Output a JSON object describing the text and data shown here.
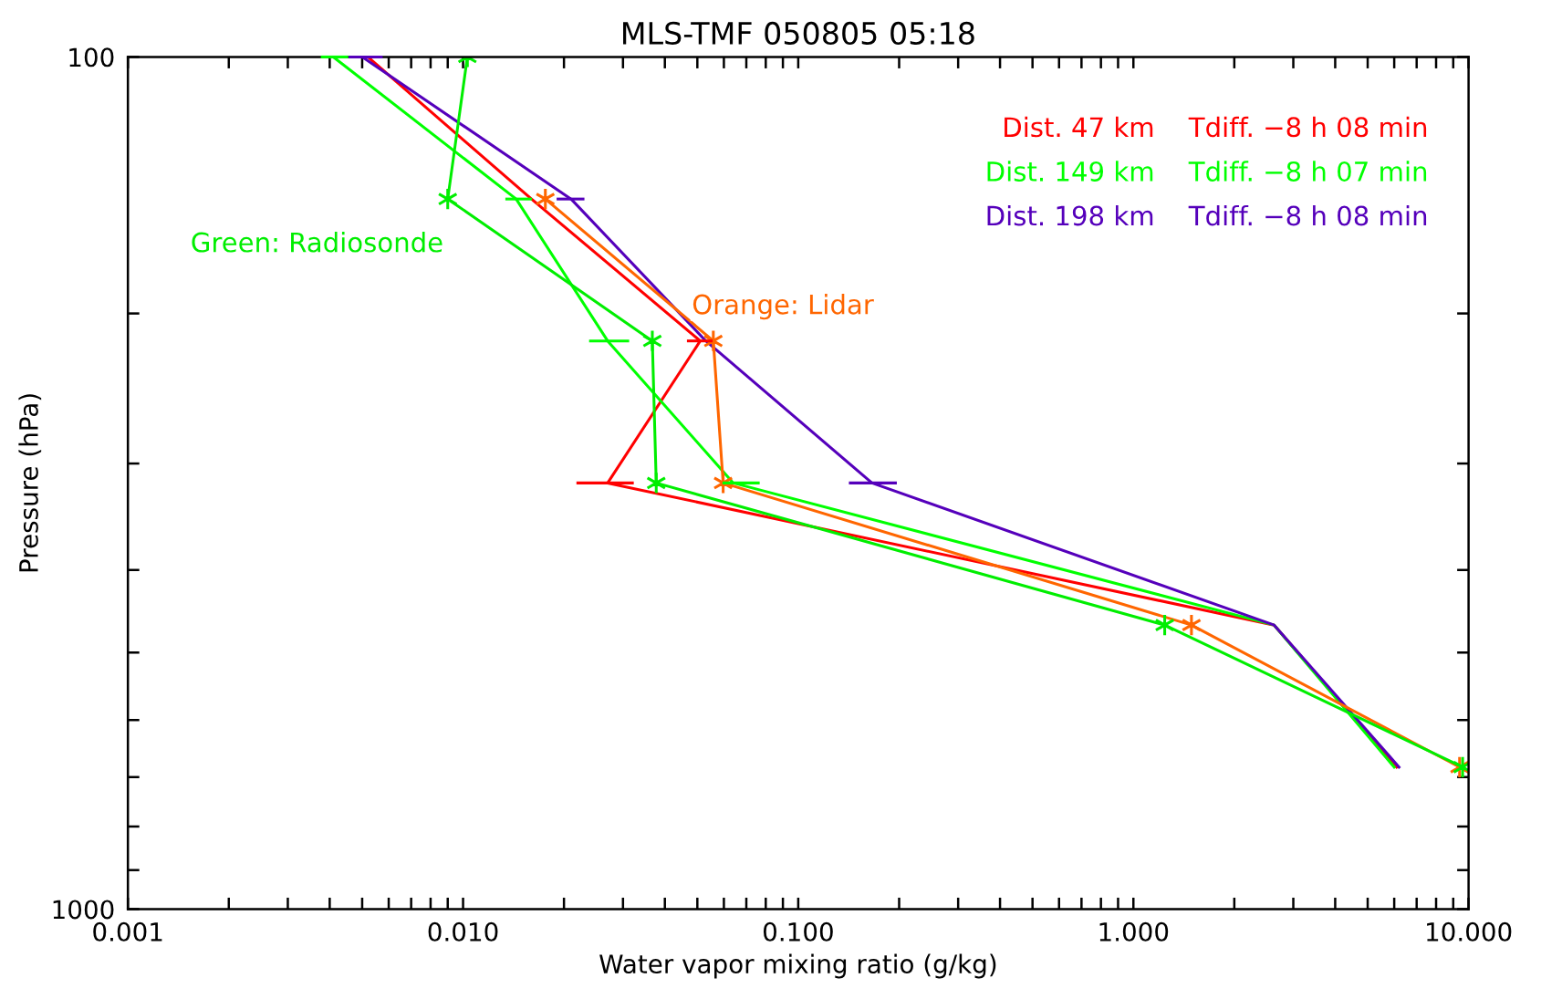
{
  "chart_data": {
    "type": "line",
    "title": "MLS-TMF 050805 05:18",
    "xlabel": "Water vapor mixing ratio (g/kg)",
    "ylabel": "Pressure (hPa)",
    "log": "xy",
    "xlim": [
      0.001,
      10
    ],
    "ylim": [
      1000,
      100
    ],
    "xticks": [
      {
        "value": 0.001,
        "label": "0.001"
      },
      {
        "value": 0.002,
        "label": null
      },
      {
        "value": 0.003,
        "label": null
      },
      {
        "value": 0.004,
        "label": null
      },
      {
        "value": 0.005,
        "label": null
      },
      {
        "value": 0.006,
        "label": null
      },
      {
        "value": 0.007,
        "label": null
      },
      {
        "value": 0.008,
        "label": null
      },
      {
        "value": 0.009,
        "label": null
      },
      {
        "value": 0.01,
        "label": "0.010"
      },
      {
        "value": 0.02,
        "label": null
      },
      {
        "value": 0.03,
        "label": null
      },
      {
        "value": 0.04,
        "label": null
      },
      {
        "value": 0.05,
        "label": null
      },
      {
        "value": 0.06,
        "label": null
      },
      {
        "value": 0.07,
        "label": null
      },
      {
        "value": 0.08,
        "label": null
      },
      {
        "value": 0.09,
        "label": null
      },
      {
        "value": 0.1,
        "label": "0.100"
      },
      {
        "value": 0.2,
        "label": null
      },
      {
        "value": 0.3,
        "label": null
      },
      {
        "value": 0.4,
        "label": null
      },
      {
        "value": 0.5,
        "label": null
      },
      {
        "value": 0.6,
        "label": null
      },
      {
        "value": 0.7,
        "label": null
      },
      {
        "value": 0.8,
        "label": null
      },
      {
        "value": 0.9,
        "label": null
      },
      {
        "value": 1,
        "label": "1.000"
      },
      {
        "value": 2,
        "label": null
      },
      {
        "value": 3,
        "label": null
      },
      {
        "value": 4,
        "label": null
      },
      {
        "value": 5,
        "label": null
      },
      {
        "value": 6,
        "label": null
      },
      {
        "value": 7,
        "label": null
      },
      {
        "value": 8,
        "label": null
      },
      {
        "value": 9,
        "label": null
      },
      {
        "value": 10,
        "label": "10.000"
      }
    ],
    "yticks": [
      100,
      {
        "value": 200,
        "label": null
      },
      {
        "value": 300,
        "label": null
      },
      {
        "value": 400,
        "label": null
      },
      {
        "value": 500,
        "label": null
      },
      {
        "value": 600,
        "label": null
      },
      {
        "value": 700,
        "label": null
      },
      {
        "value": 800,
        "label": null
      },
      {
        "value": 900,
        "label": null
      },
      1000
    ],
    "grid": false,
    "legend": "top right",
    "line_style": "solid",
    "series": [
      {
        "name": "Dist. 47 km    Tdiff. −8 h 08 min",
        "color": "#ff0000",
        "marker": "none",
        "x": [
          0.0052,
          0.016,
          0.051,
          0.027,
          2.63,
          6.1
        ],
        "values": [
          100,
          146.8,
          215.4,
          316.2,
          464.2,
          681.3
        ],
        "xerrors": [
          null,
          null,
          [
            0.047,
            0.055
          ],
          [
            0.022,
            0.032
          ],
          null,
          null
        ]
      },
      {
        "name": "Dist. 149 km    Tdiff. −8 h 07 min",
        "color": "#00ff00",
        "marker": "none",
        "x": [
          0.0041,
          0.0144,
          0.027,
          0.064,
          2.63,
          6.0
        ],
        "values": [
          100,
          146.8,
          215.4,
          316.2,
          464.2,
          681.3
        ],
        "xerrors": [
          [
            0.0038,
            0.0045
          ],
          [
            0.0135,
            0.0159
          ],
          [
            0.024,
            0.031
          ],
          [
            0.06,
            0.076
          ],
          null,
          null
        ]
      },
      {
        "name": "Dist. 198 km    Tdiff. −8 h 08 min",
        "color": "#5500bb",
        "marker": "none",
        "x": [
          0.005,
          0.021,
          0.053,
          0.166,
          2.63,
          6.2
        ],
        "values": [
          100,
          146.8,
          215.4,
          316.2,
          464.2,
          681.3
        ],
        "xerrors": [
          [
            0.0046,
            0.0057
          ],
          [
            0.0192,
            0.0228
          ],
          null,
          [
            0.143,
            0.195
          ],
          null,
          null
        ]
      },
      {
        "name": "Orange: Lidar",
        "color": "#ff6600",
        "marker": "cross",
        "x": [
          0.0176,
          0.0558,
          0.0597,
          1.49,
          9.4
        ],
        "values": [
          146.8,
          215.4,
          316.2,
          464.2,
          681.3
        ]
      },
      {
        "name": "Green: Radiosonde",
        "color": "#00ee00",
        "marker": "cross",
        "x": [
          0.0103,
          0.009,
          0.0367,
          0.0377,
          1.24,
          9.6
        ],
        "values": [
          100,
          146.8,
          215.4,
          316.2,
          464.2,
          681.3
        ]
      }
    ]
  }
}
